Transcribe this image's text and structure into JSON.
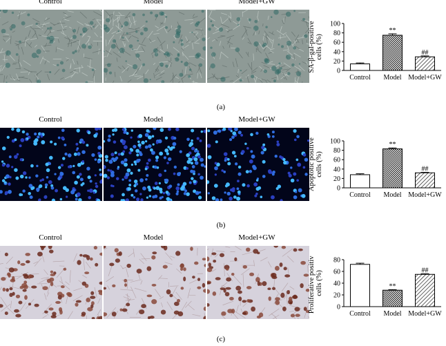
{
  "image_columns": [
    "Control",
    "Model",
    "Model+GW"
  ],
  "panels": [
    {
      "label": "(a)",
      "image_style": "brightfield-senescence",
      "chart_data": {
        "type": "bar",
        "categories": [
          "Control",
          "Model",
          "Model+GW"
        ],
        "values": [
          14,
          75,
          29
        ],
        "errors": [
          2,
          3,
          2
        ],
        "annotations": [
          "",
          "**",
          "##"
        ],
        "ylabel": "SA-β-gal-positive cells (%)",
        "ylabel_lines": [
          "SA-β-gal-positive",
          "cells (%)"
        ],
        "ylim": [
          0,
          100
        ],
        "yticks": [
          0,
          20,
          40,
          60,
          80,
          100
        ],
        "bar_patterns": [
          "white",
          "dotted",
          "hatched"
        ]
      }
    },
    {
      "label": "(b)",
      "image_style": "fluorescence-nuclei",
      "chart_data": {
        "type": "bar",
        "categories": [
          "Control",
          "Model",
          "Model+GW"
        ],
        "values": [
          28,
          83,
          32
        ],
        "errors": [
          2,
          2,
          1
        ],
        "annotations": [
          "",
          "**",
          "##"
        ],
        "ylabel": "Apoptotic positive cells (%)",
        "ylabel_lines": [
          "Apoptotic positive",
          "cells (%)"
        ],
        "ylim": [
          0,
          100
        ],
        "yticks": [
          0,
          20,
          40,
          60,
          80,
          100
        ],
        "bar_patterns": [
          "white",
          "dotted",
          "hatched"
        ]
      }
    },
    {
      "label": "(c)",
      "image_style": "ihc-brown",
      "chart_data": {
        "type": "bar",
        "categories": [
          "Control",
          "Model",
          "Model+GW"
        ],
        "values": [
          72,
          28,
          55
        ],
        "errors": [
          2,
          1,
          1
        ],
        "annotations": [
          "",
          "**",
          "##"
        ],
        "ylabel": "Proliferative positive cells (%)",
        "ylabel_lines": [
          "Proliferative positive",
          "cells (%)"
        ],
        "ylim": [
          0,
          80
        ],
        "yticks": [
          0,
          20,
          40,
          60,
          80
        ],
        "bar_patterns": [
          "white",
          "dotted",
          "hatched"
        ]
      }
    }
  ]
}
